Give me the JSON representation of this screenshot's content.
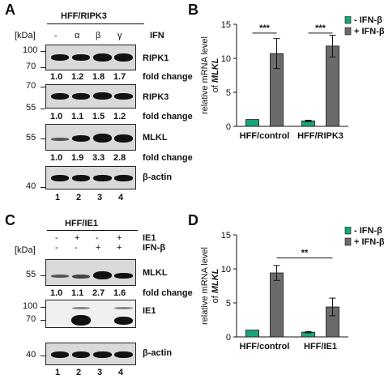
{
  "panels": {
    "a": "A",
    "b": "B",
    "c": "C",
    "d": "D"
  },
  "panel_a": {
    "cell_line": "HFF/RIPK3",
    "kda": "[kDa]",
    "treatment_label": "IFN",
    "treatments": [
      "-",
      "α",
      "β",
      "γ"
    ],
    "mw_ripk1": [
      "100",
      "70"
    ],
    "mw_ripk3": [
      "70",
      "55"
    ],
    "mw_mlkl": [
      "55"
    ],
    "mw_actin": [
      "40"
    ],
    "proteins": {
      "ripk1": "RIPK1",
      "ripk3": "RIPK3",
      "mlkl": "MLKL",
      "actin": "β-actin"
    },
    "fold_label": "fold change",
    "fold_ripk1": [
      "1.0",
      "1.2",
      "1.8",
      "1.7"
    ],
    "fold_ripk3": [
      "1.0",
      "1.1",
      "1.5",
      "1.2"
    ],
    "fold_mlkl": [
      "1.0",
      "1.9",
      "3.3",
      "2.8"
    ],
    "lanes": [
      "1",
      "2",
      "3",
      "4"
    ]
  },
  "panel_c": {
    "cell_line": "HFF/IE1",
    "kda": "[kDa]",
    "row1_label": "IE1",
    "row1": [
      "-",
      "+",
      "-",
      "+"
    ],
    "row2_label": "IFN-β",
    "row2": [
      "-",
      "-",
      "+",
      "+"
    ],
    "mw_mlkl": [
      "55"
    ],
    "mw_ie1": [
      "100",
      "70"
    ],
    "mw_actin": [
      "40"
    ],
    "proteins": {
      "mlkl": "MLKL",
      "ie1": "IE1",
      "actin": "β-actin"
    },
    "fold_label": "fold change",
    "fold_mlkl": [
      "1.0",
      "1.1",
      "2.7",
      "1.6"
    ],
    "lanes": [
      "1",
      "2",
      "3",
      "4"
    ]
  },
  "colors": {
    "minus_ifn": "#1aa37a",
    "plus_ifn": "#6b6b6b"
  },
  "chart_data": [
    {
      "type": "bar",
      "panel": "B",
      "ylabel": "relative mRNA level of MLKL",
      "categories": [
        "HFF/control",
        "HFF/RIPK3"
      ],
      "series": [
        {
          "name": "- IFN-β",
          "values": [
            1.0,
            0.8
          ],
          "errors": [
            0,
            0.1
          ]
        },
        {
          "name": "+ IFN-β",
          "values": [
            10.7,
            11.8
          ],
          "errors": [
            2.2,
            1.6
          ]
        }
      ],
      "ylim": [
        0,
        15
      ],
      "yticks": [
        "0",
        "5",
        "10",
        "15"
      ],
      "significance": [
        "***",
        "***"
      ],
      "legend": "top-right"
    },
    {
      "type": "bar",
      "panel": "D",
      "ylabel": "relative mRNA level of MLKL",
      "categories": [
        "HFF/control",
        "HFF/IE1"
      ],
      "series": [
        {
          "name": "- IFN-β",
          "values": [
            1.0,
            0.7
          ],
          "errors": [
            0,
            0.1
          ]
        },
        {
          "name": "+ IFN-β",
          "values": [
            9.4,
            4.4
          ],
          "errors": [
            1.1,
            1.3
          ]
        }
      ],
      "ylim": [
        0,
        15
      ],
      "yticks": [
        "0",
        "5",
        "10",
        "15"
      ],
      "significance": [
        "**"
      ],
      "legend": "top-right"
    }
  ]
}
